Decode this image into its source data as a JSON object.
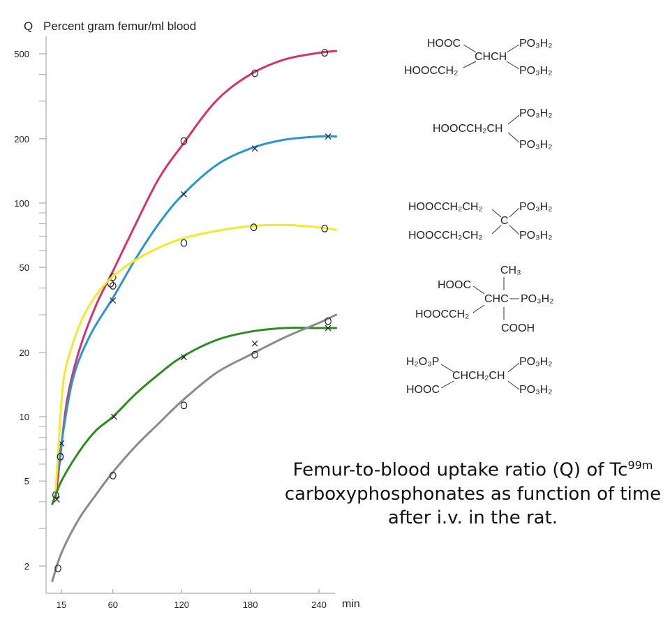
{
  "chart_data": {
    "type": "line",
    "title": "Femur-to-blood uptake ratio (Q) of Tc99m carboxyphosphonates as function of time after i.v. in the rat.",
    "ylabel_symbol": "Q",
    "ylabel": "Percent gram femur/ml blood",
    "xlabel": "min",
    "yscale": "log",
    "ylim": [
      1.5,
      600
    ],
    "xlim": [
      5,
      255
    ],
    "x_ticks": [
      15,
      60,
      120,
      180,
      240
    ],
    "y_ticks": [
      2,
      5,
      10,
      20,
      50,
      100,
      200,
      500
    ],
    "series": [
      {
        "name": "magenta",
        "color": "#d6336c",
        "marker": "o",
        "curve": [
          [
            10,
            4.2
          ],
          [
            14,
            6.5
          ],
          [
            20,
            12
          ],
          [
            30,
            20
          ],
          [
            45,
            33
          ],
          [
            60,
            48
          ],
          [
            80,
            80
          ],
          [
            100,
            130
          ],
          [
            120,
            185
          ],
          [
            150,
            300
          ],
          [
            180,
            400
          ],
          [
            210,
            470
          ],
          [
            240,
            505
          ],
          [
            255,
            515
          ]
        ],
        "points": [
          [
            10,
            4.3
          ],
          [
            14,
            6.5
          ],
          [
            60,
            45
          ],
          [
            58,
            42
          ],
          [
            122,
            195
          ],
          [
            184,
            405
          ],
          [
            245,
            505
          ]
        ]
      },
      {
        "name": "blue",
        "color": "#2d94d2",
        "marker": "x",
        "curve": [
          [
            12,
            5.5
          ],
          [
            15,
            7.5
          ],
          [
            25,
            15
          ],
          [
            40,
            24
          ],
          [
            60,
            36
          ],
          [
            80,
            55
          ],
          [
            100,
            80
          ],
          [
            120,
            108
          ],
          [
            150,
            150
          ],
          [
            180,
            180
          ],
          [
            210,
            198
          ],
          [
            240,
            205
          ],
          [
            255,
            205
          ]
        ],
        "points": [
          [
            15,
            7.5
          ],
          [
            60,
            35
          ],
          [
            122,
            110
          ],
          [
            184,
            180
          ],
          [
            248,
            205
          ]
        ]
      },
      {
        "name": "yellow",
        "color": "#f2ea2a",
        "marker": "o",
        "curve": [
          [
            10,
            4.5
          ],
          [
            13,
            8
          ],
          [
            17,
            15
          ],
          [
            25,
            22
          ],
          [
            35,
            30
          ],
          [
            50,
            40
          ],
          [
            70,
            50
          ],
          [
            95,
            60
          ],
          [
            120,
            68
          ],
          [
            150,
            74
          ],
          [
            180,
            78
          ],
          [
            210,
            79
          ],
          [
            240,
            77
          ],
          [
            255,
            75
          ]
        ],
        "points": [
          [
            14,
            6.5
          ],
          [
            60,
            41
          ],
          [
            122,
            65
          ],
          [
            183,
            77
          ],
          [
            245,
            76
          ]
        ]
      },
      {
        "name": "green",
        "color": "#2e8a23",
        "marker": "x",
        "curve": [
          [
            7,
            3.9
          ],
          [
            15,
            5
          ],
          [
            30,
            6.8
          ],
          [
            45,
            8.6
          ],
          [
            60,
            10
          ],
          [
            80,
            12.8
          ],
          [
            100,
            15.8
          ],
          [
            120,
            19
          ],
          [
            150,
            22.8
          ],
          [
            180,
            25
          ],
          [
            210,
            26
          ],
          [
            240,
            26
          ],
          [
            255,
            26
          ]
        ],
        "points": [
          [
            11,
            4.1
          ],
          [
            61,
            10
          ],
          [
            122,
            19
          ],
          [
            184,
            22
          ],
          [
            248,
            26
          ]
        ]
      },
      {
        "name": "gray",
        "color": "#8a8a8a",
        "marker": "o",
        "curve": [
          [
            7,
            1.7
          ],
          [
            15,
            2.3
          ],
          [
            30,
            3.3
          ],
          [
            45,
            4.3
          ],
          [
            60,
            5.5
          ],
          [
            80,
            7.3
          ],
          [
            100,
            9.3
          ],
          [
            120,
            11.8
          ],
          [
            150,
            16
          ],
          [
            180,
            19.5
          ],
          [
            210,
            23.5
          ],
          [
            240,
            27.5
          ],
          [
            255,
            30
          ]
        ],
        "points": [
          [
            12,
            1.95
          ],
          [
            60,
            5.3
          ],
          [
            122,
            11.3
          ],
          [
            184,
            19.5
          ],
          [
            248,
            28
          ]
        ]
      }
    ]
  },
  "structures": [
    {
      "left_top": "HOOC",
      "left_bottom": "HOOCCH₂",
      "center": "CHCH",
      "right_top": "PO₃H₂",
      "right_bottom": "PO₃H₂"
    },
    {
      "left": "HOOCCH₂CH",
      "right_top": "PO₃H₂",
      "right_bottom": "PO₃H₂"
    },
    {
      "left_top": "HOOCCH₂CH₂",
      "left_bottom": "HOOCCH₂CH₂",
      "center": "C",
      "right_top": "PO₃H₂",
      "right_bottom": "PO₃H₂"
    },
    {
      "top": "CH₃",
      "left_top": "HOOC",
      "left_bottom": "HOOCCH₂",
      "center": "CHC",
      "right": "PO₃H₂",
      "bottom": "COOH"
    },
    {
      "left_top": "H₂O₃P",
      "left_bottom": "HOOC",
      "center": "CHCH₂CH",
      "right_top": "PO₃H₂",
      "right_bottom": "PO₃H₂"
    }
  ],
  "caption": {
    "line1_pre": "Femur-to-blood uptake ratio (Q) of Tc",
    "line1_sup": "99m",
    "line2": "carboxyphosphonates as function of time",
    "line3": "after i.v. in the rat."
  }
}
